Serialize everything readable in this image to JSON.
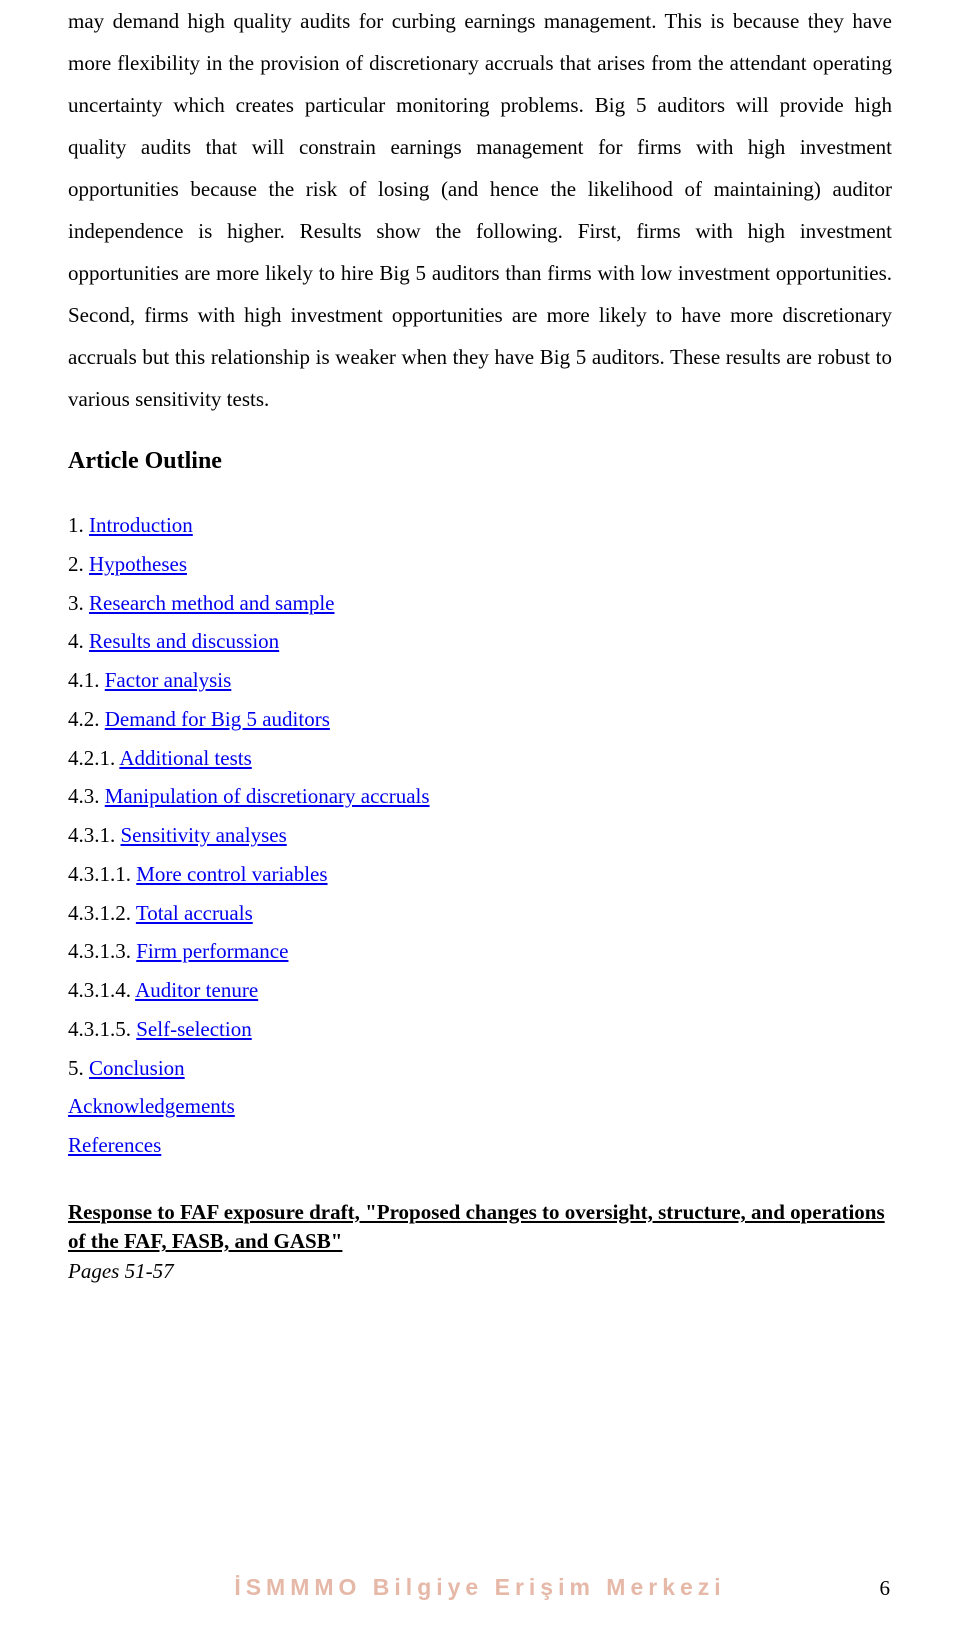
{
  "paragraph": "may demand high quality audits for curbing earnings management. This is because they have more flexibility in the provision of discretionary accruals that arises from the attendant operating uncertainty which creates particular monitoring problems. Big 5 auditors will provide high quality audits that will constrain earnings management for firms with high investment opportunities because the risk of losing (and hence the likelihood of maintaining) auditor independence is higher. Results show the following. First, firms with high investment opportunities are more likely to hire Big 5 auditors than firms with low investment opportunities. Second, firms with high investment opportunities are more likely to have more discretionary accruals but this relationship is weaker when they have Big 5 auditors. These results are robust to various sensitivity tests.",
  "outline_heading": "Article Outline",
  "outline": [
    {
      "num": "1. ",
      "text": "Introduction"
    },
    {
      "num": "2. ",
      "text": "Hypotheses"
    },
    {
      "num": "3. ",
      "text": "Research method and sample"
    },
    {
      "num": "4. ",
      "text": "Results and discussion"
    },
    {
      "num": "4.1. ",
      "text": "Factor analysis"
    },
    {
      "num": "4.2. ",
      "text": "Demand for Big 5 auditors"
    },
    {
      "num": "4.2.1. ",
      "text": "Additional tests"
    },
    {
      "num": "4.3. ",
      "text": "Manipulation of discretionary accruals"
    },
    {
      "num": "4.3.1. ",
      "text": "Sensitivity analyses"
    },
    {
      "num": "4.3.1.1. ",
      "text": "More control variables"
    },
    {
      "num": "4.3.1.2. ",
      "text": "Total accruals"
    },
    {
      "num": "4.3.1.3. ",
      "text": "Firm performance"
    },
    {
      "num": "4.3.1.4. ",
      "text": "Auditor tenure"
    },
    {
      "num": "4.3.1.5. ",
      "text": "Self-selection"
    },
    {
      "num": "5. ",
      "text": "Conclusion"
    },
    {
      "num": "",
      "text": "Acknowledgements"
    },
    {
      "num": "",
      "text": "References"
    }
  ],
  "article_title": "Response to FAF exposure draft, \"Proposed changes to oversight, structure, and operations of the FAF, FASB, and GASB\"",
  "pages_label": "Pages 51-57",
  "footer_text": "İSMMMO Bilgiye Erişim Merkezi",
  "page_number": "6",
  "colors": {
    "link": "#0000ee",
    "footer": "#e6b8a8",
    "text": "#000000",
    "background": "#ffffff"
  }
}
